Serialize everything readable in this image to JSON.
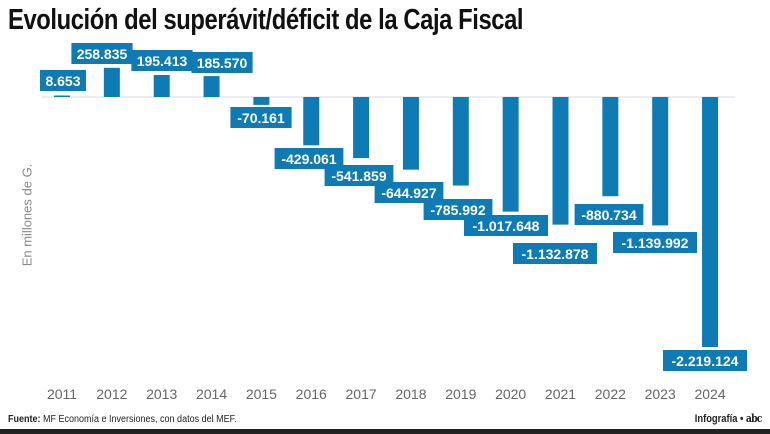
{
  "chart_data": {
    "type": "bar",
    "title": "Evolución del superávit/déficit de la Caja Fiscal",
    "ylabel": "En millones de G.",
    "xlabel": "",
    "categories": [
      "2011",
      "2012",
      "2013",
      "2014",
      "2015",
      "2016",
      "2017",
      "2018",
      "2019",
      "2020",
      "2021",
      "2022",
      "2023",
      "2024"
    ],
    "values": [
      8653,
      258835,
      195413,
      185570,
      -70161,
      -429061,
      -541859,
      -644927,
      -785992,
      -1017648,
      -1132878,
      -880734,
      -1139992,
      -2219124
    ],
    "value_labels": [
      "8.653",
      "258.835",
      "195.413",
      "185.570",
      "-70.161",
      "-429.061",
      "-541.859",
      "-644.927",
      "-785.992",
      "-1.017.648",
      "-1.132.878",
      "-880.734",
      "-1.139.992",
      "-2.219.124"
    ],
    "ylim": [
      -2219124,
      258835
    ],
    "grid": false,
    "bar_color": "#0e7bb4"
  },
  "footer": {
    "source_label": "Fuente:",
    "source_text": "MF Economía e Inversiones, con datos del MEF."
  },
  "credit": {
    "text": "Infografía •",
    "logo": "abc"
  }
}
